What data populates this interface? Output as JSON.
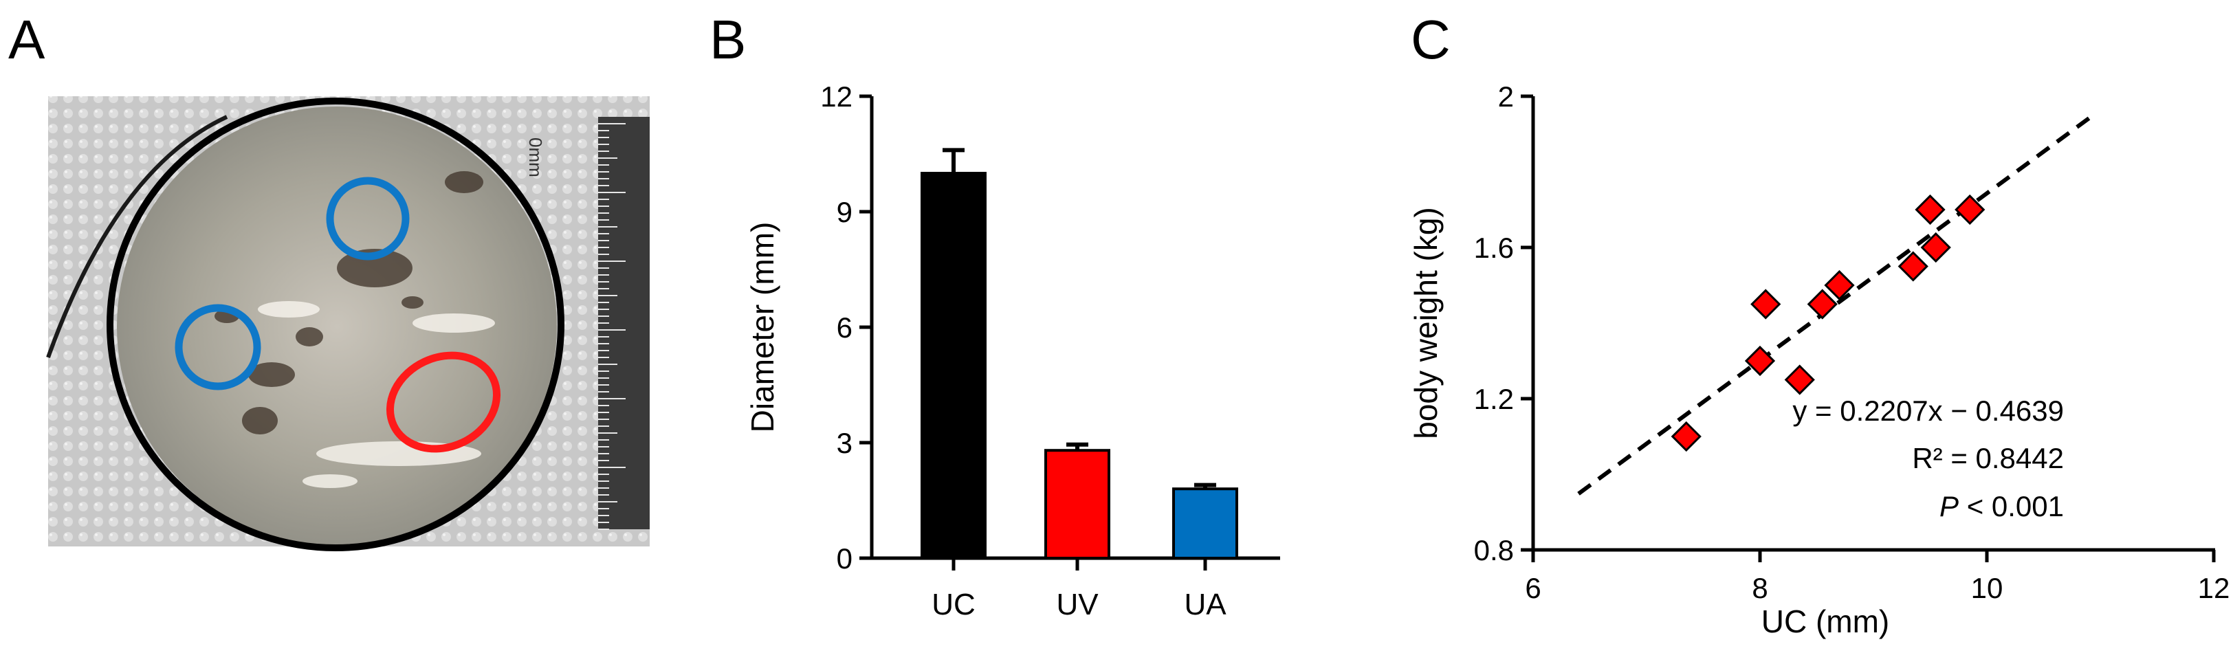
{
  "panels": {
    "a": {
      "letter": "A"
    },
    "b": {
      "letter": "B"
    },
    "c": {
      "letter": "C"
    }
  },
  "colors": {
    "bar_uc": "#000000",
    "bar_uv": "#ff0000",
    "bar_ua": "#0070c0",
    "marker": "#ff0000",
    "circle_outline": "#000000",
    "ring_red": "#ff1a1a",
    "ring_blue": "#0f78c8"
  },
  "photo": {
    "ruler_label": "0mm",
    "elements": [
      "dish-outline",
      "tissue-sample",
      "ring-red",
      "ring-blue-top",
      "ring-blue-left",
      "ruler",
      "cable"
    ]
  },
  "chart_data": [
    {
      "type": "bar",
      "categories": [
        "UC",
        "UV",
        "UA"
      ],
      "values": [
        10.0,
        2.8,
        1.8
      ],
      "errors": [
        0.6,
        0.15,
        0.1
      ],
      "ylabel": "Diameter (mm)",
      "xlabel": "",
      "ylim": [
        0,
        12
      ],
      "yticks": [
        "0",
        "3",
        "6",
        "9",
        "12"
      ],
      "grid": false
    },
    {
      "type": "scatter",
      "x": [
        7.35,
        8.0,
        8.05,
        8.35,
        8.55,
        8.7,
        9.35,
        9.5,
        9.55,
        9.85
      ],
      "y": [
        1.1,
        1.3,
        1.45,
        1.25,
        1.45,
        1.5,
        1.55,
        1.7,
        1.6,
        1.7
      ],
      "xlabel": "UC (mm)",
      "ylabel": "body weight (kg)",
      "xlim": [
        6,
        12
      ],
      "ylim": [
        0.8,
        2.0
      ],
      "xticks": [
        "6",
        "8",
        "10",
        "12"
      ],
      "yticks": [
        "0.8",
        "1.2",
        "1.6",
        "2"
      ],
      "trendline": {
        "slope": 0.2207,
        "intercept": -0.4639,
        "x_range": [
          6.4,
          10.9
        ]
      },
      "annotations": {
        "equation": "y = 0.2207x − 0.4639",
        "r2": "R² = 0.8442",
        "p_italic": "P",
        "p_rest": " < 0.001"
      },
      "grid": false
    }
  ]
}
